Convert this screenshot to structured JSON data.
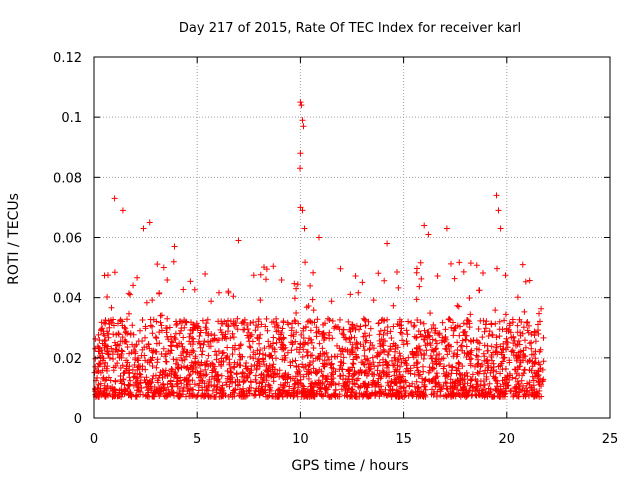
{
  "chart_data": {
    "type": "scatter",
    "title": "Day 217 of 2015, Rate Of TEC Index for receiver karl",
    "xlabel": "GPS time / hours",
    "ylabel": "ROTI / TECUs",
    "xlim": [
      0,
      25
    ],
    "ylim": [
      0,
      0.12
    ],
    "xticks": [
      0,
      5,
      10,
      15,
      20,
      25
    ],
    "yticks": [
      0,
      0.02,
      0.04,
      0.06,
      0.08,
      0.1,
      0.12
    ],
    "xtick_labels": [
      "0",
      "5",
      "10",
      "15",
      "20",
      "25"
    ],
    "ytick_labels": [
      "0",
      "0.02",
      "0.04",
      "0.06",
      "0.08",
      "0.1",
      "0.12"
    ],
    "grid": true,
    "marker": "+",
    "series": [
      {
        "name": "ROTI",
        "color": "#ff0000",
        "description": "Dense cloud of points from 0 to ~21.8 h, mostly 0.005–0.035 TECU/s, with spikes",
        "x_range": [
          0,
          21.8
        ],
        "bulk_range": [
          0.005,
          0.035
        ],
        "spikes": [
          {
            "x": 1.0,
            "y": 0.073
          },
          {
            "x": 1.4,
            "y": 0.069
          },
          {
            "x": 2.4,
            "y": 0.063
          },
          {
            "x": 2.7,
            "y": 0.065
          },
          {
            "x": 3.9,
            "y": 0.057
          },
          {
            "x": 7.0,
            "y": 0.059
          },
          {
            "x": 10.0,
            "y": 0.105
          },
          {
            "x": 10.05,
            "y": 0.104
          },
          {
            "x": 10.1,
            "y": 0.099
          },
          {
            "x": 10.15,
            "y": 0.097
          },
          {
            "x": 10.0,
            "y": 0.088
          },
          {
            "x": 9.98,
            "y": 0.083
          },
          {
            "x": 10.0,
            "y": 0.07
          },
          {
            "x": 10.1,
            "y": 0.069
          },
          {
            "x": 10.2,
            "y": 0.063
          },
          {
            "x": 10.9,
            "y": 0.06
          },
          {
            "x": 14.2,
            "y": 0.058
          },
          {
            "x": 16.0,
            "y": 0.064
          },
          {
            "x": 16.2,
            "y": 0.061
          },
          {
            "x": 17.1,
            "y": 0.063
          },
          {
            "x": 19.5,
            "y": 0.074
          },
          {
            "x": 19.6,
            "y": 0.069
          },
          {
            "x": 19.7,
            "y": 0.063
          }
        ]
      }
    ]
  }
}
